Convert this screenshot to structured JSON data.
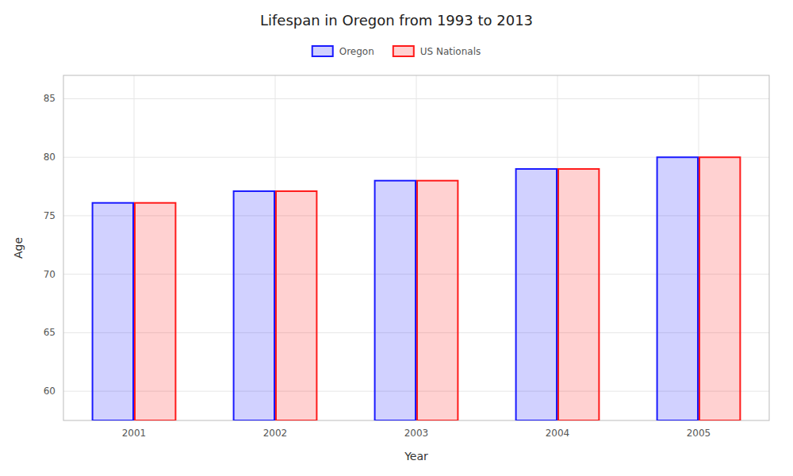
{
  "chart_data": {
    "type": "bar",
    "title": "Lifespan in Oregon from 1993 to 2013",
    "x_label": "Year",
    "y_label": "Age",
    "categories": [
      "2001",
      "2002",
      "2003",
      "2004",
      "2005"
    ],
    "series": [
      {
        "name": "Oregon",
        "color": "#1a1aff",
        "values": [
          76.1,
          77.1,
          78.0,
          79.0,
          80.0
        ]
      },
      {
        "name": "US Nationals",
        "color": "#ff1a1a",
        "values": [
          76.1,
          77.1,
          78.0,
          79.0,
          80.0
        ]
      }
    ],
    "ylim": [
      57.5,
      87
    ],
    "yticks": [
      60,
      65,
      70,
      75,
      80,
      85
    ],
    "grid": true,
    "legend": "top"
  }
}
